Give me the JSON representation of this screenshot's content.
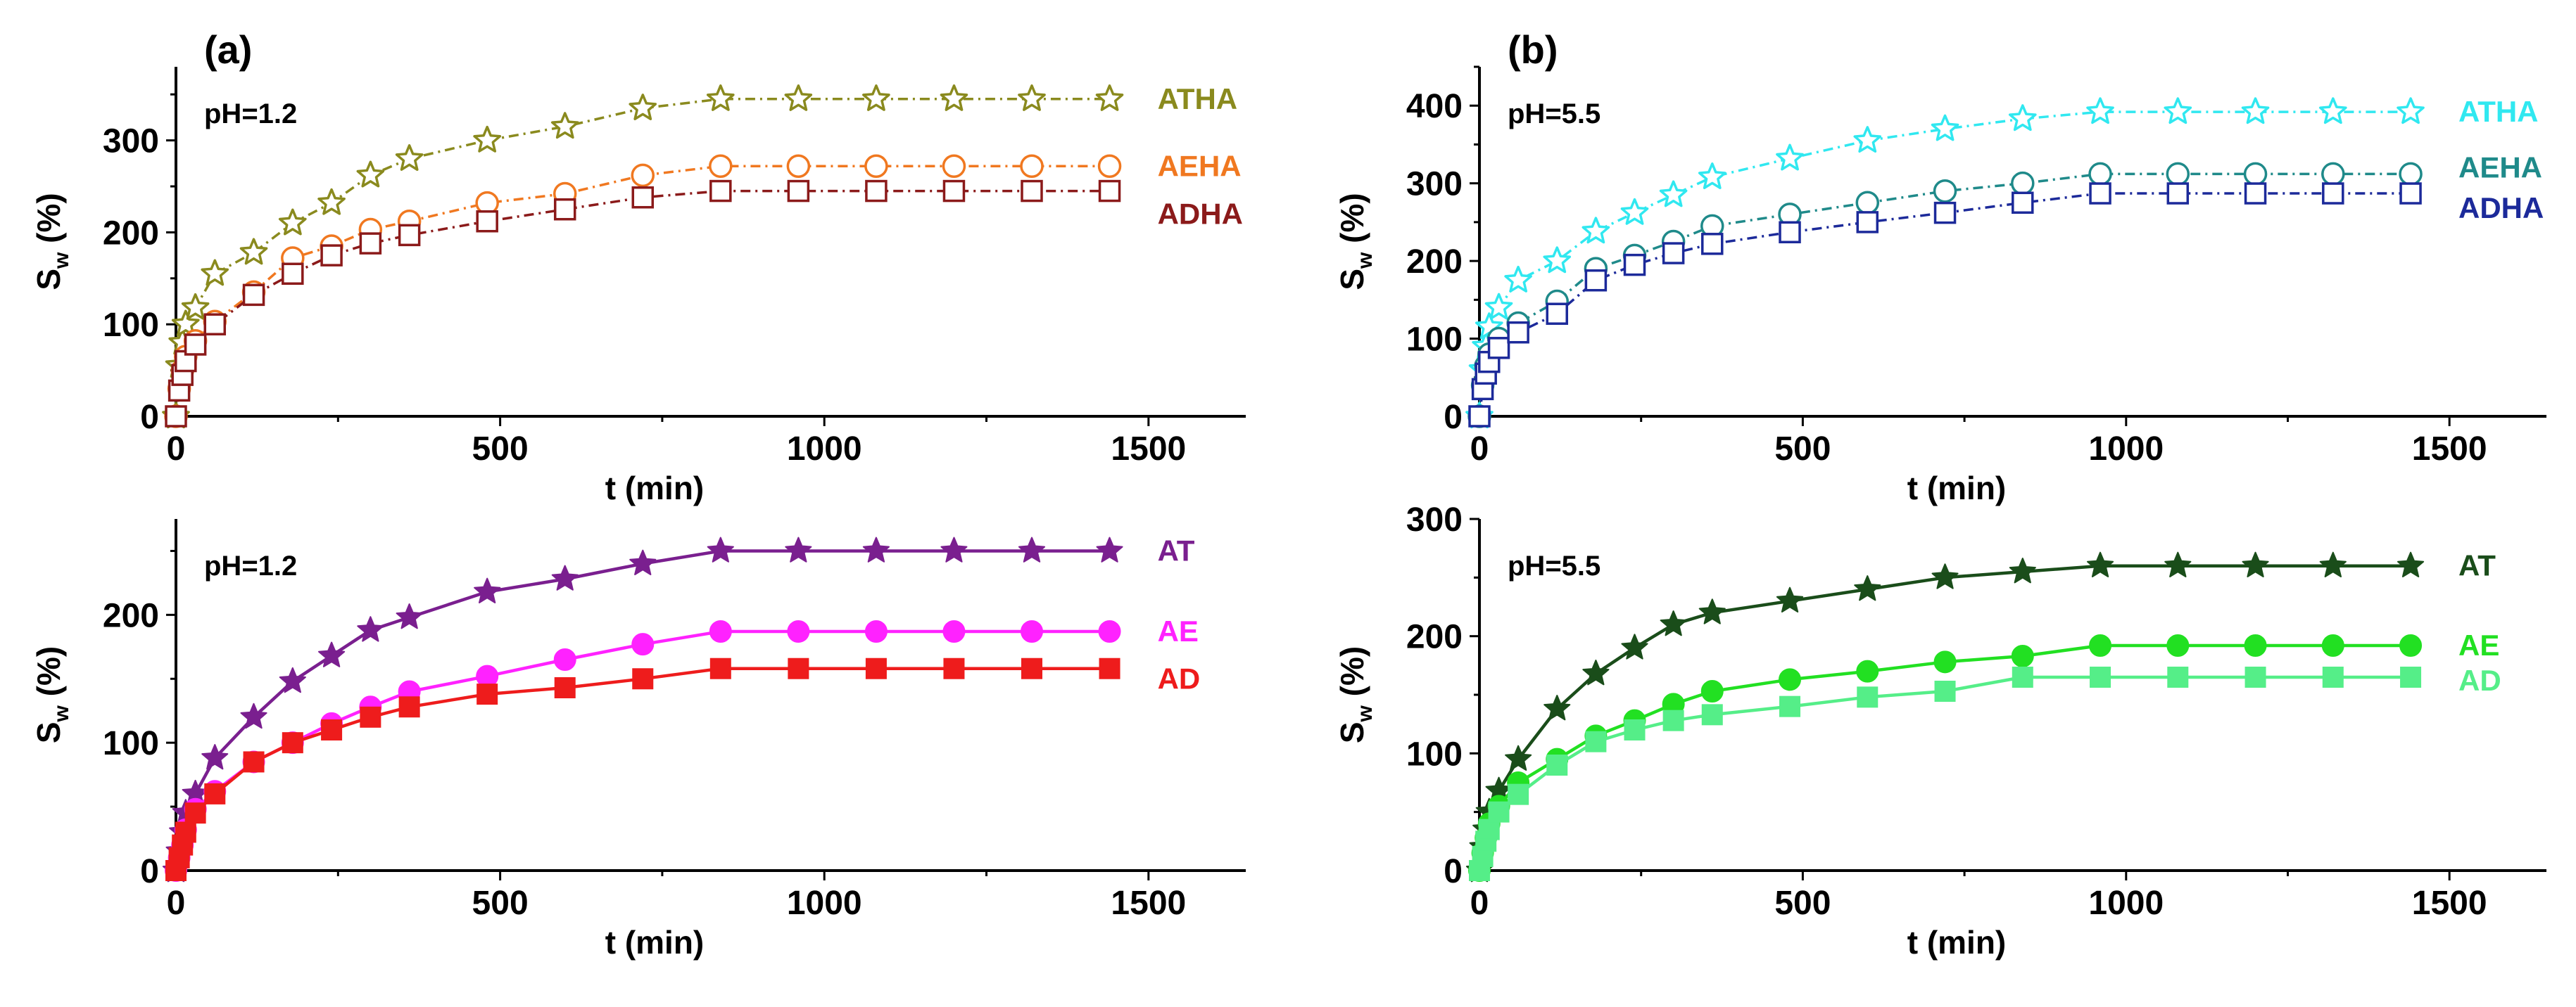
{
  "chart_data": [
    {
      "id": "a_top",
      "type": "line",
      "panel_label": "(a)",
      "condition": "pH=1.2",
      "xlabel": "t (min)",
      "ylabel_main": "S",
      "ylabel_sub": "w",
      "ylabel_unit": " (%)",
      "xlim": [
        0,
        1650
      ],
      "ylim": [
        0,
        380
      ],
      "xticks": [
        0,
        500,
        1000,
        1500
      ],
      "yticks": [
        0,
        100,
        200,
        300
      ],
      "series": [
        {
          "name": "ATHA",
          "color": "#8a8a1e",
          "marker": "star",
          "filled": false,
          "dashed": true,
          "x": [
            0,
            5,
            10,
            15,
            30,
            60,
            120,
            180,
            240,
            300,
            360,
            480,
            600,
            720,
            840,
            960,
            1080,
            1200,
            1320,
            1440
          ],
          "y": [
            0,
            55,
            80,
            100,
            118,
            155,
            178,
            210,
            232,
            262,
            280,
            300,
            315,
            335,
            345,
            345,
            345,
            345,
            345,
            345
          ]
        },
        {
          "name": "AEHA",
          "color": "#f07820",
          "marker": "circle",
          "filled": false,
          "dashed": true,
          "x": [
            0,
            5,
            10,
            15,
            30,
            60,
            120,
            180,
            240,
            300,
            360,
            480,
            600,
            720,
            840,
            960,
            1080,
            1200,
            1320,
            1440
          ],
          "y": [
            0,
            30,
            50,
            65,
            82,
            103,
            135,
            172,
            185,
            203,
            212,
            232,
            242,
            262,
            272,
            272,
            272,
            272,
            272,
            272
          ]
        },
        {
          "name": "ADHA",
          "color": "#8b1a1a",
          "marker": "square",
          "filled": false,
          "dashed": true,
          "x": [
            0,
            5,
            10,
            15,
            30,
            60,
            120,
            180,
            240,
            300,
            360,
            480,
            600,
            720,
            840,
            960,
            1080,
            1200,
            1320,
            1440
          ],
          "y": [
            0,
            28,
            45,
            60,
            78,
            100,
            132,
            155,
            175,
            188,
            197,
            212,
            225,
            238,
            245,
            245,
            245,
            245,
            245,
            245
          ]
        }
      ]
    },
    {
      "id": "a_bottom",
      "type": "line",
      "condition": "pH=1.2",
      "xlabel": "t (min)",
      "ylabel_main": "S",
      "ylabel_sub": "w",
      "ylabel_unit": " (%)",
      "xlim": [
        0,
        1650
      ],
      "ylim": [
        0,
        275
      ],
      "xticks": [
        0,
        500,
        1000,
        1500
      ],
      "yticks": [
        0,
        100,
        200
      ],
      "series": [
        {
          "name": "AT",
          "color": "#7a1f8f",
          "marker": "star",
          "filled": true,
          "dashed": false,
          "x": [
            0,
            5,
            10,
            15,
            30,
            60,
            120,
            180,
            240,
            300,
            360,
            480,
            600,
            720,
            840,
            960,
            1080,
            1200,
            1320,
            1440
          ],
          "y": [
            0,
            15,
            30,
            45,
            60,
            88,
            120,
            148,
            168,
            188,
            198,
            218,
            228,
            240,
            250,
            250,
            250,
            250,
            250,
            250
          ]
        },
        {
          "name": "AE",
          "color": "#ff22ff",
          "marker": "circle",
          "filled": true,
          "dashed": false,
          "x": [
            0,
            5,
            10,
            15,
            30,
            60,
            120,
            180,
            240,
            300,
            360,
            480,
            600,
            720,
            840,
            960,
            1080,
            1200,
            1320,
            1440
          ],
          "y": [
            0,
            10,
            20,
            32,
            48,
            62,
            85,
            100,
            115,
            128,
            140,
            152,
            165,
            177,
            187,
            187,
            187,
            187,
            187,
            187
          ]
        },
        {
          "name": "AD",
          "color": "#ee1c1c",
          "marker": "square",
          "filled": true,
          "dashed": false,
          "x": [
            0,
            5,
            10,
            15,
            30,
            60,
            120,
            180,
            240,
            300,
            360,
            480,
            600,
            720,
            840,
            960,
            1080,
            1200,
            1320,
            1440
          ],
          "y": [
            0,
            10,
            20,
            30,
            45,
            60,
            85,
            100,
            110,
            120,
            128,
            138,
            143,
            150,
            158,
            158,
            158,
            158,
            158,
            158
          ]
        }
      ]
    },
    {
      "id": "b_top",
      "type": "line",
      "panel_label": "(b)",
      "condition": "pH=5.5",
      "xlabel": "t (min)",
      "ylabel_main": "S",
      "ylabel_sub": "w",
      "ylabel_unit": " (%)",
      "xlim": [
        0,
        1650
      ],
      "ylim": [
        0,
        450
      ],
      "xticks": [
        0,
        500,
        1000,
        1500
      ],
      "yticks": [
        0,
        100,
        200,
        300,
        400
      ],
      "series": [
        {
          "name": "ATHA",
          "color": "#30e8f0",
          "marker": "star",
          "filled": false,
          "dashed": true,
          "x": [
            0,
            5,
            10,
            15,
            30,
            60,
            120,
            180,
            240,
            300,
            360,
            480,
            600,
            720,
            840,
            960,
            1080,
            1200,
            1320,
            1440
          ],
          "y": [
            0,
            60,
            90,
            115,
            140,
            175,
            200,
            238,
            262,
            285,
            308,
            332,
            355,
            370,
            383,
            392,
            392,
            392,
            392,
            392
          ]
        },
        {
          "name": "AEHA",
          "color": "#1f8a8a",
          "marker": "circle",
          "filled": false,
          "dashed": true,
          "x": [
            0,
            5,
            10,
            15,
            30,
            60,
            120,
            180,
            240,
            300,
            360,
            480,
            600,
            720,
            840,
            960,
            1080,
            1200,
            1320,
            1440
          ],
          "y": [
            0,
            40,
            65,
            80,
            100,
            120,
            148,
            190,
            207,
            225,
            245,
            260,
            275,
            290,
            300,
            312,
            312,
            312,
            312,
            312
          ]
        },
        {
          "name": "ADHA",
          "color": "#1c2a9a",
          "marker": "square",
          "filled": false,
          "dashed": true,
          "x": [
            0,
            5,
            10,
            15,
            30,
            60,
            120,
            180,
            240,
            300,
            360,
            480,
            600,
            720,
            840,
            960,
            1080,
            1200,
            1320,
            1440
          ],
          "y": [
            0,
            35,
            55,
            70,
            88,
            108,
            132,
            175,
            195,
            210,
            222,
            237,
            250,
            262,
            275,
            287,
            287,
            287,
            287,
            287
          ]
        }
      ]
    },
    {
      "id": "b_bottom",
      "type": "line",
      "condition": "pH=5.5",
      "xlabel": "t (min)",
      "ylabel_main": "S",
      "ylabel_sub": "w",
      "ylabel_unit": " (%)",
      "xlim": [
        0,
        1650
      ],
      "ylim": [
        0,
        300
      ],
      "xticks": [
        0,
        500,
        1000,
        1500
      ],
      "yticks": [
        0,
        100,
        200,
        300
      ],
      "series": [
        {
          "name": "AT",
          "color": "#1a4d1a",
          "marker": "star",
          "filled": true,
          "dashed": false,
          "x": [
            0,
            5,
            10,
            15,
            30,
            60,
            120,
            180,
            240,
            300,
            360,
            480,
            600,
            720,
            840,
            960,
            1080,
            1200,
            1320,
            1440
          ],
          "y": [
            0,
            20,
            35,
            50,
            68,
            95,
            138,
            168,
            190,
            210,
            220,
            230,
            240,
            250,
            255,
            260,
            260,
            260,
            260,
            260
          ]
        },
        {
          "name": "AE",
          "color": "#22e022",
          "marker": "circle",
          "filled": true,
          "dashed": false,
          "x": [
            0,
            5,
            10,
            15,
            30,
            60,
            120,
            180,
            240,
            300,
            360,
            480,
            600,
            720,
            840,
            960,
            1080,
            1200,
            1320,
            1440
          ],
          "y": [
            0,
            15,
            28,
            40,
            55,
            75,
            95,
            115,
            128,
            142,
            153,
            163,
            170,
            178,
            183,
            192,
            192,
            192,
            192,
            192
          ]
        },
        {
          "name": "AD",
          "color": "#55ee88",
          "marker": "square",
          "filled": true,
          "dashed": false,
          "x": [
            0,
            5,
            10,
            15,
            30,
            60,
            120,
            180,
            240,
            300,
            360,
            480,
            600,
            720,
            840,
            960,
            1080,
            1200,
            1320,
            1440
          ],
          "y": [
            0,
            12,
            25,
            35,
            50,
            65,
            90,
            110,
            120,
            128,
            133,
            140,
            148,
            153,
            165,
            165,
            165,
            165,
            165,
            165
          ]
        }
      ]
    }
  ]
}
